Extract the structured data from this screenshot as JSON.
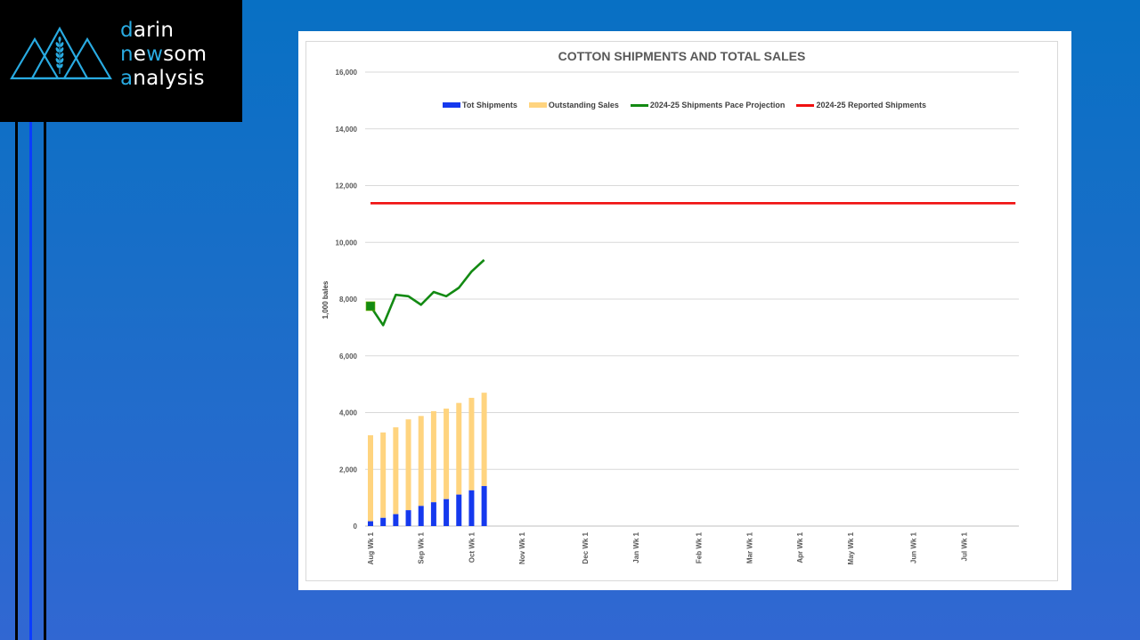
{
  "brand": {
    "line1": {
      "hl": "d",
      "rest": "arin"
    },
    "line2": {
      "hl1": "n",
      "mid": "e",
      "hl2": "w",
      "rest": "som"
    },
    "line3": {
      "hl": "a",
      "rest": "nalysis"
    },
    "logo_icon": "mountains-wheat-icon",
    "accent_color": "#29abe2"
  },
  "chart_data": {
    "type": "bar",
    "title": "COTTON SHIPMENTS AND TOTAL SALES",
    "xlabel": "",
    "ylabel": "1,000 bales",
    "ylim": [
      0,
      16000
    ],
    "yticks": [
      0,
      2000,
      4000,
      6000,
      8000,
      10000,
      12000,
      14000,
      16000
    ],
    "ytick_labels": [
      "0",
      "2,000",
      "4,000",
      "6,000",
      "8,000",
      "10,000",
      "12,000",
      "14,000",
      "16,000"
    ],
    "grid": true,
    "legend_position": "top",
    "week_count": 52,
    "x_tick_labels": [
      {
        "week": 0,
        "label": "Aug Wk 1"
      },
      {
        "week": 4,
        "label": "Sep Wk 1"
      },
      {
        "week": 8,
        "label": "Oct Wk 1"
      },
      {
        "week": 12,
        "label": "Nov Wk 1"
      },
      {
        "week": 17,
        "label": "Dec Wk 1"
      },
      {
        "week": 21,
        "label": "Jan Wk 1"
      },
      {
        "week": 26,
        "label": "Feb Wk 1"
      },
      {
        "week": 30,
        "label": "Mar Wk 1"
      },
      {
        "week": 34,
        "label": "Apr Wk 1"
      },
      {
        "week": 38,
        "label": "May Wk 1"
      },
      {
        "week": 43,
        "label": "Jun Wk 1"
      },
      {
        "week": 47,
        "label": "Jul Wk 1"
      }
    ],
    "series": [
      {
        "name": "Tot Shipments",
        "kind": "stacked-bar",
        "color": "#1539ee",
        "values": [
          170,
          290,
          420,
          560,
          710,
          840,
          950,
          1110,
          1260,
          1410
        ]
      },
      {
        "name": "Outstanding Sales",
        "kind": "stacked-bar",
        "color": "#ffd47f",
        "values": [
          3030,
          3010,
          3060,
          3200,
          3170,
          3210,
          3190,
          3230,
          3260,
          3290
        ]
      },
      {
        "name": "2024-25 Shipments Pace Projection",
        "kind": "line",
        "color": "#138a13",
        "values": [
          7750,
          7080,
          8150,
          8100,
          7800,
          8250,
          8100,
          8400,
          8970,
          9380
        ],
        "first_point_marker": "square"
      },
      {
        "name": "2024-25 Reported Shipments",
        "kind": "line",
        "color": "#f01010",
        "constant": 11380,
        "from_week": 0,
        "to_week": 51
      }
    ]
  }
}
